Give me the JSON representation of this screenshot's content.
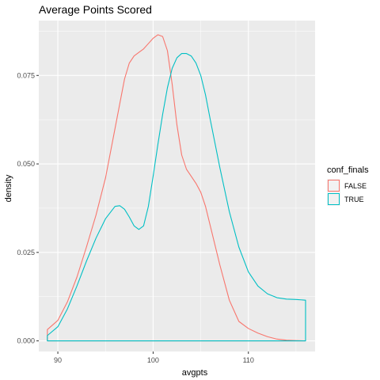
{
  "chart_data": {
    "type": "area",
    "title": "Average Points Scored",
    "xlabel": "avgpts",
    "ylabel": "density",
    "xlim": [
      88,
      117
    ],
    "ylim": [
      -0.003,
      0.0905
    ],
    "xticks": [
      90,
      100,
      110
    ],
    "yticks": [
      0.0,
      0.025,
      0.05,
      0.075
    ],
    "ytick_labels": [
      "0.000",
      "0.025",
      "0.050",
      "0.075"
    ],
    "grid": true,
    "legend": {
      "title": "conf_finals",
      "placement": "right"
    },
    "series": [
      {
        "name": "FALSE",
        "color": "#F8766D",
        "x": [
          88.9,
          90.0,
          91.0,
          92.0,
          93.0,
          94.0,
          95.0,
          96.0,
          96.5,
          97.0,
          97.5,
          98.0,
          98.5,
          99.0,
          99.5,
          100.0,
          100.5,
          101.0,
          101.5,
          102.0,
          102.5,
          103.0,
          103.5,
          104.0,
          104.5,
          105.0,
          105.5,
          106.0,
          107.0,
          108.0,
          109.0,
          110.0,
          111.0,
          112.0,
          113.0,
          114.0,
          115.0,
          116.0
        ],
        "y": [
          0.0032,
          0.0058,
          0.011,
          0.018,
          0.0265,
          0.0355,
          0.046,
          0.06,
          0.067,
          0.074,
          0.0785,
          0.0805,
          0.0815,
          0.0825,
          0.084,
          0.0855,
          0.0865,
          0.086,
          0.082,
          0.0725,
          0.061,
          0.0525,
          0.0485,
          0.0465,
          0.0445,
          0.042,
          0.038,
          0.0325,
          0.0215,
          0.0115,
          0.0055,
          0.0035,
          0.0022,
          0.0012,
          0.0005,
          0.0002,
          0.0001,
          0.0
        ]
      },
      {
        "name": "TRUE",
        "color": "#00BFC4",
        "x": [
          88.9,
          90.0,
          91.0,
          92.0,
          93.0,
          94.0,
          95.0,
          96.0,
          96.5,
          97.0,
          97.5,
          98.0,
          98.5,
          99.0,
          99.5,
          100.0,
          100.5,
          101.0,
          101.5,
          102.0,
          102.5,
          103.0,
          103.5,
          104.0,
          104.5,
          105.0,
          105.5,
          106.0,
          107.0,
          108.0,
          109.0,
          110.0,
          111.0,
          112.0,
          113.0,
          114.0,
          115.0,
          116.0
        ],
        "y": [
          0.0015,
          0.004,
          0.009,
          0.0155,
          0.0225,
          0.029,
          0.0345,
          0.038,
          0.0382,
          0.0372,
          0.035,
          0.0325,
          0.0315,
          0.0325,
          0.038,
          0.0465,
          0.0555,
          0.064,
          0.0715,
          0.077,
          0.08,
          0.0812,
          0.0812,
          0.0805,
          0.0785,
          0.075,
          0.0695,
          0.0625,
          0.049,
          0.0365,
          0.0265,
          0.0195,
          0.0155,
          0.0133,
          0.0122,
          0.0118,
          0.0117,
          0.0115
        ]
      }
    ]
  }
}
